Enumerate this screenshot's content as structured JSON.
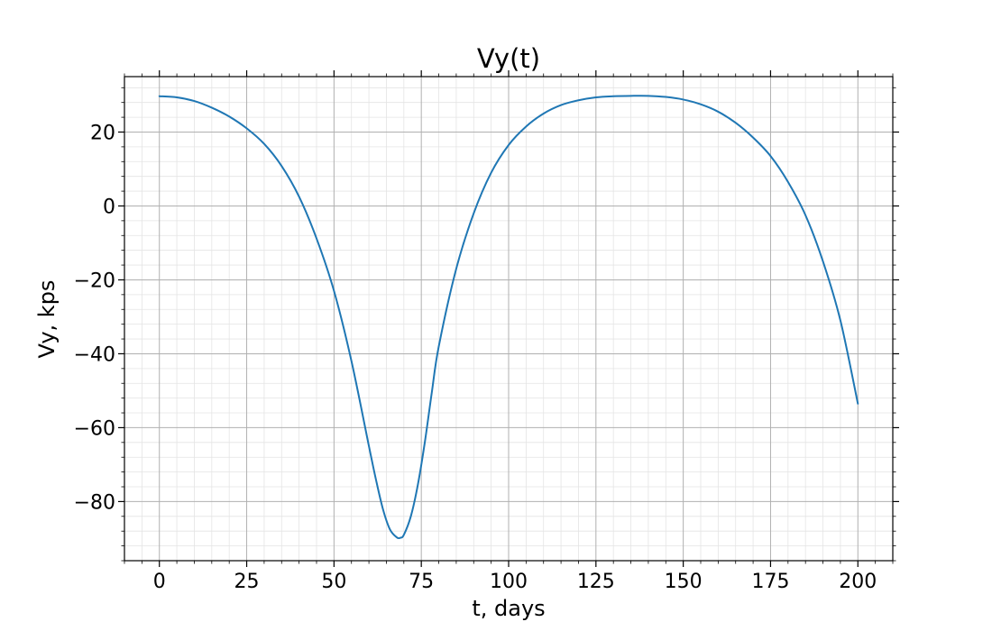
{
  "chart_data": {
    "type": "line",
    "title": "Vy(t)",
    "xlabel": "t, days",
    "ylabel": "Vy, kps",
    "xlim": [
      -10,
      210
    ],
    "ylim": [
      -96,
      35
    ],
    "x_ticks": [
      0,
      25,
      50,
      75,
      100,
      125,
      150,
      175,
      200
    ],
    "y_ticks": [
      -80,
      -60,
      -40,
      -20,
      0,
      20
    ],
    "x_tick_labels": [
      "0",
      "25",
      "50",
      "75",
      "100",
      "125",
      "150",
      "175",
      "200"
    ],
    "y_tick_labels": [
      "−80",
      "−60",
      "−40",
      "−20",
      "0",
      "20"
    ],
    "x_minor_step": 5,
    "y_minor_step": 4,
    "grid": true,
    "series_color": "#1f77b4",
    "series": [
      {
        "x": [
          0,
          5,
          10,
          15,
          20,
          25,
          30,
          35,
          40,
          45,
          50,
          55,
          60,
          62,
          64,
          66,
          68,
          69,
          70,
          72,
          74,
          76,
          78,
          80,
          85,
          90,
          95,
          100,
          105,
          110,
          115,
          120,
          125,
          130,
          135,
          140,
          145,
          150,
          155,
          160,
          165,
          170,
          175,
          180,
          185,
          190,
          195,
          200
        ],
        "y": [
          29.7,
          29.4,
          28.4,
          26.6,
          24.2,
          21.0,
          16.8,
          10.8,
          2.5,
          -8.8,
          -23.0,
          -42.0,
          -65.0,
          -74.0,
          -82.0,
          -87.5,
          -89.7,
          -89.8,
          -89.0,
          -84.0,
          -75.5,
          -64.0,
          -50.5,
          -38.0,
          -17.0,
          -2.0,
          9.0,
          16.5,
          21.5,
          25.0,
          27.3,
          28.6,
          29.4,
          29.7,
          29.8,
          29.8,
          29.5,
          28.8,
          27.5,
          25.5,
          22.5,
          18.5,
          13.5,
          6.5,
          -2.5,
          -15.0,
          -31.0,
          -53.5
        ]
      }
    ]
  }
}
